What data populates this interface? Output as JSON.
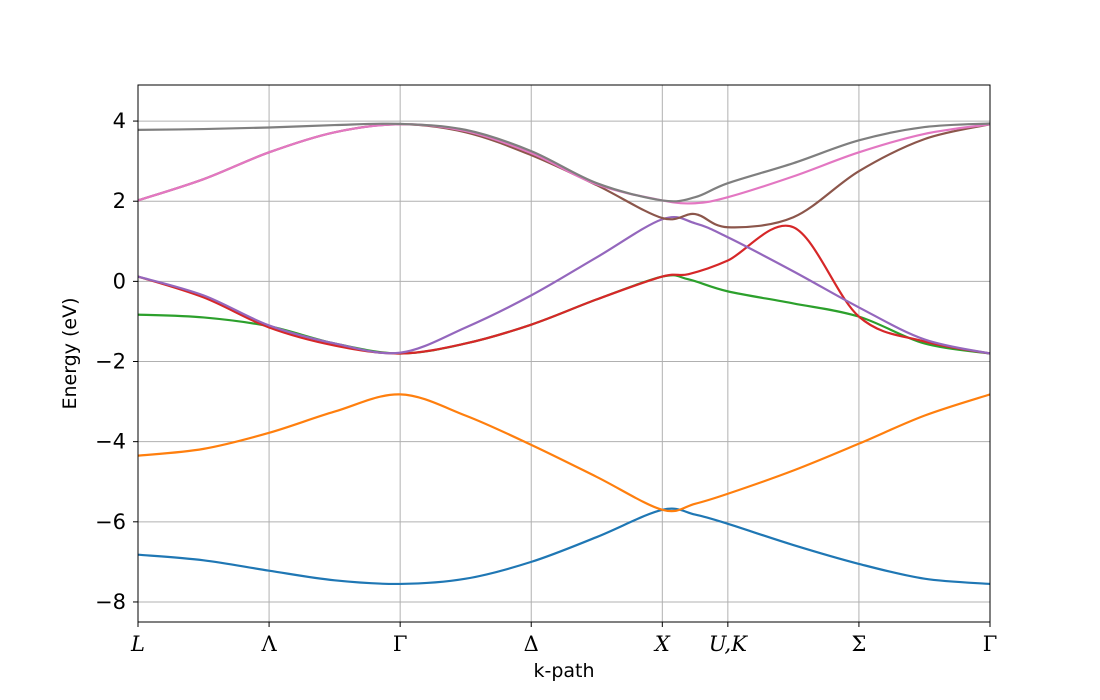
{
  "chart_data": {
    "type": "line",
    "title": "",
    "xlabel": "k-path",
    "ylabel": "Energy (eV)",
    "ylim": [
      -8.5,
      4.9
    ],
    "yticks": [
      -8,
      -6,
      -4,
      -2,
      0,
      2,
      4
    ],
    "ytick_labels": [
      "−8",
      "−6",
      "−4",
      "−2",
      "0",
      "2",
      "4"
    ],
    "grid": true,
    "legend": "none",
    "x_labels": [
      "L",
      "Λ",
      "Γ",
      "Δ",
      "X",
      "U,K",
      "Σ",
      "Γ"
    ],
    "x_label_italic": [
      true,
      false,
      false,
      false,
      true,
      true,
      false,
      false
    ],
    "x_ticks": [
      0,
      1,
      2,
      3,
      4,
      4.5,
      5.5,
      6.5
    ],
    "series": [
      {
        "color": "#1f77b4",
        "values": [
          [
            0,
            -6.82
          ],
          [
            0.5,
            -6.96
          ],
          [
            1,
            -7.22
          ],
          [
            1.5,
            -7.46
          ],
          [
            2,
            -7.55
          ],
          [
            2.5,
            -7.42
          ],
          [
            3,
            -7.0
          ],
          [
            3.5,
            -6.38
          ],
          [
            4,
            -5.7
          ],
          [
            4.25,
            -5.82
          ],
          [
            4.5,
            -6.05
          ],
          [
            5,
            -6.58
          ],
          [
            5.5,
            -7.05
          ],
          [
            6,
            -7.42
          ],
          [
            6.5,
            -7.55
          ]
        ]
      },
      {
        "color": "#ff7f0e",
        "values": [
          [
            0,
            -4.35
          ],
          [
            0.5,
            -4.18
          ],
          [
            1,
            -3.78
          ],
          [
            1.5,
            -3.25
          ],
          [
            2,
            -2.82
          ],
          [
            2.5,
            -3.35
          ],
          [
            3,
            -4.08
          ],
          [
            3.5,
            -4.88
          ],
          [
            4,
            -5.7
          ],
          [
            4.25,
            -5.55
          ],
          [
            4.5,
            -5.3
          ],
          [
            5,
            -4.72
          ],
          [
            5.5,
            -4.05
          ],
          [
            6,
            -3.35
          ],
          [
            6.5,
            -2.82
          ]
        ]
      },
      {
        "color": "#2ca02c",
        "values": [
          [
            0,
            -0.83
          ],
          [
            0.5,
            -0.9
          ],
          [
            1,
            -1.12
          ],
          [
            1.5,
            -1.55
          ],
          [
            2,
            -1.8
          ],
          [
            2.5,
            -1.55
          ],
          [
            3,
            -1.08
          ],
          [
            3.5,
            -0.45
          ],
          [
            4,
            0.12
          ],
          [
            4.2,
            0.05
          ],
          [
            4.5,
            -0.25
          ],
          [
            5,
            -0.55
          ],
          [
            5.5,
            -0.88
          ],
          [
            6,
            -1.55
          ],
          [
            6.5,
            -1.8
          ]
        ]
      },
      {
        "color": "#d62728",
        "values": [
          [
            0,
            0.12
          ],
          [
            0.5,
            -0.4
          ],
          [
            1,
            -1.15
          ],
          [
            1.5,
            -1.6
          ],
          [
            2,
            -1.8
          ],
          [
            2.5,
            -1.55
          ],
          [
            3,
            -1.08
          ],
          [
            3.5,
            -0.45
          ],
          [
            4,
            0.12
          ],
          [
            4.2,
            0.18
          ],
          [
            4.5,
            0.52
          ],
          [
            5,
            1.35
          ],
          [
            5.5,
            -0.88
          ],
          [
            6,
            -1.5
          ],
          [
            6.5,
            -1.8
          ]
        ]
      },
      {
        "color": "#9467bd",
        "values": [
          [
            0,
            0.12
          ],
          [
            0.5,
            -0.35
          ],
          [
            1,
            -1.1
          ],
          [
            1.5,
            -1.55
          ],
          [
            2,
            -1.78
          ],
          [
            2.5,
            -1.15
          ],
          [
            3,
            -0.35
          ],
          [
            3.5,
            0.6
          ],
          [
            4,
            1.55
          ],
          [
            4.25,
            1.45
          ],
          [
            4.5,
            1.1
          ],
          [
            5,
            0.25
          ],
          [
            5.5,
            -0.65
          ],
          [
            6,
            -1.45
          ],
          [
            6.5,
            -1.8
          ]
        ]
      },
      {
        "color": "#8c564b",
        "values": [
          [
            0,
            2.02
          ],
          [
            0.5,
            2.55
          ],
          [
            1,
            3.22
          ],
          [
            1.5,
            3.72
          ],
          [
            2,
            3.92
          ],
          [
            2.5,
            3.72
          ],
          [
            3,
            3.15
          ],
          [
            3.5,
            2.4
          ],
          [
            4,
            1.58
          ],
          [
            4.25,
            1.68
          ],
          [
            4.5,
            1.35
          ],
          [
            5,
            1.6
          ],
          [
            5.5,
            2.75
          ],
          [
            6,
            3.55
          ],
          [
            6.5,
            3.92
          ]
        ]
      },
      {
        "color": "#e377c2",
        "values": [
          [
            0,
            2.02
          ],
          [
            0.5,
            2.55
          ],
          [
            1,
            3.22
          ],
          [
            1.5,
            3.72
          ],
          [
            2,
            3.92
          ],
          [
            2.5,
            3.75
          ],
          [
            3,
            3.2
          ],
          [
            3.5,
            2.42
          ],
          [
            4,
            2.02
          ],
          [
            4.25,
            1.95
          ],
          [
            4.5,
            2.1
          ],
          [
            5,
            2.62
          ],
          [
            5.5,
            3.22
          ],
          [
            6,
            3.68
          ],
          [
            6.5,
            3.92
          ]
        ]
      },
      {
        "color": "#7f7f7f",
        "values": [
          [
            0,
            3.78
          ],
          [
            0.5,
            3.8
          ],
          [
            1,
            3.84
          ],
          [
            1.5,
            3.9
          ],
          [
            2,
            3.93
          ],
          [
            2.5,
            3.78
          ],
          [
            3,
            3.25
          ],
          [
            3.5,
            2.45
          ],
          [
            4,
            2.02
          ],
          [
            4.25,
            2.1
          ],
          [
            4.5,
            2.45
          ],
          [
            5,
            2.95
          ],
          [
            5.5,
            3.52
          ],
          [
            6,
            3.85
          ],
          [
            6.5,
            3.94
          ]
        ]
      }
    ]
  }
}
